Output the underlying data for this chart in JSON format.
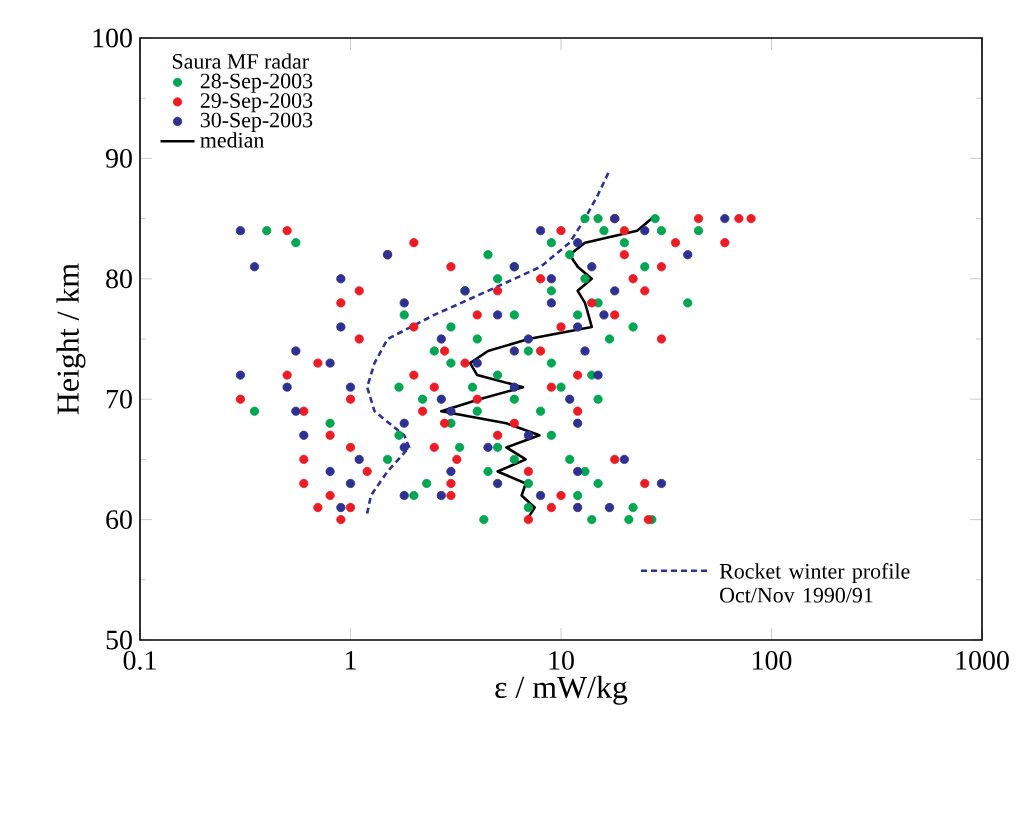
{
  "chart_data": {
    "type": "scatter",
    "xlabel": "ε / mW/kg",
    "ylabel": "Height / km",
    "legend_title": "Saura MF radar",
    "legend": "top left",
    "log": "x",
    "xlim": [
      0.1,
      1000
    ],
    "ylim": [
      50,
      100
    ],
    "xticks": [
      0.1,
      1,
      10,
      100,
      1000
    ],
    "yticks": [
      50,
      60,
      70,
      80,
      90,
      100
    ],
    "series": [
      {
        "name": "28-Sep-2003",
        "marker": "circle",
        "color": "#00a651",
        "x": [
          0.55,
          0.4,
          13,
          15,
          28,
          30,
          16,
          45,
          9,
          20,
          4.5,
          11,
          6,
          25,
          5,
          13,
          3.5,
          9,
          40,
          15,
          1.8,
          6,
          12,
          3,
          22,
          17,
          4,
          7,
          2.5,
          9,
          3,
          14,
          5,
          1.7,
          3.8,
          10,
          6,
          2.2,
          15,
          0.35,
          4,
          8,
          0.8,
          3,
          1.7,
          9,
          3.3,
          5,
          1.5,
          11,
          6,
          4.5,
          13,
          2.3,
          7,
          15,
          2,
          12,
          7,
          22,
          4.3,
          14,
          21,
          27
        ],
        "values": [
          83,
          84,
          85,
          85,
          85,
          84,
          84,
          84,
          83,
          83,
          82,
          82,
          81,
          81,
          80,
          80,
          79,
          79,
          78,
          78,
          77,
          77,
          77,
          76,
          76,
          75,
          75,
          74,
          74,
          73,
          73,
          72,
          72,
          71,
          71,
          71,
          70,
          70,
          70,
          69,
          69,
          69,
          68,
          68,
          67,
          67,
          66,
          66,
          65,
          65,
          65,
          64,
          64,
          63,
          63,
          63,
          62,
          62,
          61,
          61,
          60,
          60,
          60,
          60
        ]
      },
      {
        "name": "29-Sep-2003",
        "marker": "circle",
        "color": "#ed1c24",
        "x": [
          45,
          70,
          80,
          18,
          20,
          10,
          0.5,
          2,
          60,
          35,
          1.5,
          20,
          3,
          30,
          8,
          22,
          1.1,
          5,
          25,
          0.9,
          14,
          4,
          18,
          2,
          10,
          1.1,
          30,
          2.8,
          8,
          0.7,
          3.5,
          0.5,
          2,
          12,
          2.5,
          9,
          0.3,
          1,
          4,
          0.6,
          2.2,
          12,
          2.8,
          6,
          0.8,
          5,
          1,
          2.5,
          0.6,
          3.2,
          18,
          1.2,
          7,
          0.6,
          3,
          25,
          0.8,
          3,
          10,
          0.7,
          1,
          9,
          0.9,
          7,
          26
        ],
        "values": [
          85,
          85,
          85,
          85,
          84,
          84,
          84,
          83,
          83,
          83,
          82,
          82,
          81,
          81,
          80,
          80,
          79,
          79,
          79,
          78,
          78,
          77,
          77,
          76,
          76,
          75,
          75,
          74,
          74,
          73,
          73,
          72,
          72,
          72,
          71,
          71,
          70,
          70,
          70,
          69,
          69,
          69,
          68,
          68,
          67,
          67,
          66,
          66,
          65,
          65,
          65,
          64,
          64,
          63,
          63,
          63,
          62,
          62,
          62,
          61,
          61,
          61,
          60,
          60,
          60
        ]
      },
      {
        "name": "30-Sep-2003",
        "marker": "circle",
        "color": "#2e3192",
        "x": [
          60,
          18,
          8,
          0.3,
          25,
          12,
          0.35,
          40,
          1.5,
          14,
          6,
          9,
          0.9,
          3.5,
          18,
          1.8,
          9,
          5,
          16,
          0.9,
          12,
          2.7,
          7,
          0.55,
          6,
          13,
          0.8,
          4,
          0.3,
          15,
          0.5,
          1,
          6,
          2.7,
          11,
          0.55,
          3,
          1.8,
          12,
          0.6,
          7,
          1.8,
          4.5,
          1.1,
          20,
          3,
          0.8,
          12,
          1,
          5,
          30,
          1.8,
          8,
          2.7,
          17,
          0.9,
          12
        ],
        "values": [
          85,
          85,
          84,
          84,
          84,
          83,
          81,
          82,
          82,
          81,
          81,
          80,
          80,
          79,
          79,
          78,
          78,
          77,
          77,
          76,
          76,
          75,
          75,
          74,
          74,
          74,
          73,
          73,
          72,
          72,
          71,
          71,
          71,
          70,
          70,
          69,
          69,
          68,
          68,
          67,
          67,
          66,
          66,
          65,
          65,
          64,
          64,
          64,
          63,
          63,
          63,
          62,
          62,
          62,
          61,
          61,
          61
        ]
      },
      {
        "name": "median",
        "type": "line",
        "line_style": "solid",
        "color": "#000000",
        "x": [
          6.9,
          7.5,
          6.5,
          6.8,
          5,
          6.8,
          5.5,
          7.9,
          5.5,
          2.7,
          4.1,
          6.6,
          4,
          3.7,
          4.5,
          7,
          14,
          13.5,
          13,
          12,
          14,
          12,
          11,
          13,
          23,
          27
        ],
        "values": [
          60,
          61,
          62,
          63,
          64,
          65,
          66,
          67,
          68,
          69,
          70,
          71,
          72,
          73,
          74,
          75,
          76,
          77,
          78,
          79,
          80,
          81,
          82,
          83,
          84,
          85
        ]
      },
      {
        "name": "Rocket winter profile Oct/Nov 1990/91",
        "type": "line",
        "line_style": "dashed",
        "color": "#2e3192",
        "x": [
          1.2,
          1.25,
          1.5,
          1.9,
          1.8,
          1.3,
          1.2,
          1.3,
          1.5,
          2.5,
          4.5,
          8,
          11,
          13,
          15,
          17
        ],
        "values": [
          60.5,
          62,
          64,
          66,
          67,
          69,
          71,
          73,
          75,
          77,
          79,
          81,
          83,
          85,
          87,
          89
        ]
      }
    ]
  }
}
